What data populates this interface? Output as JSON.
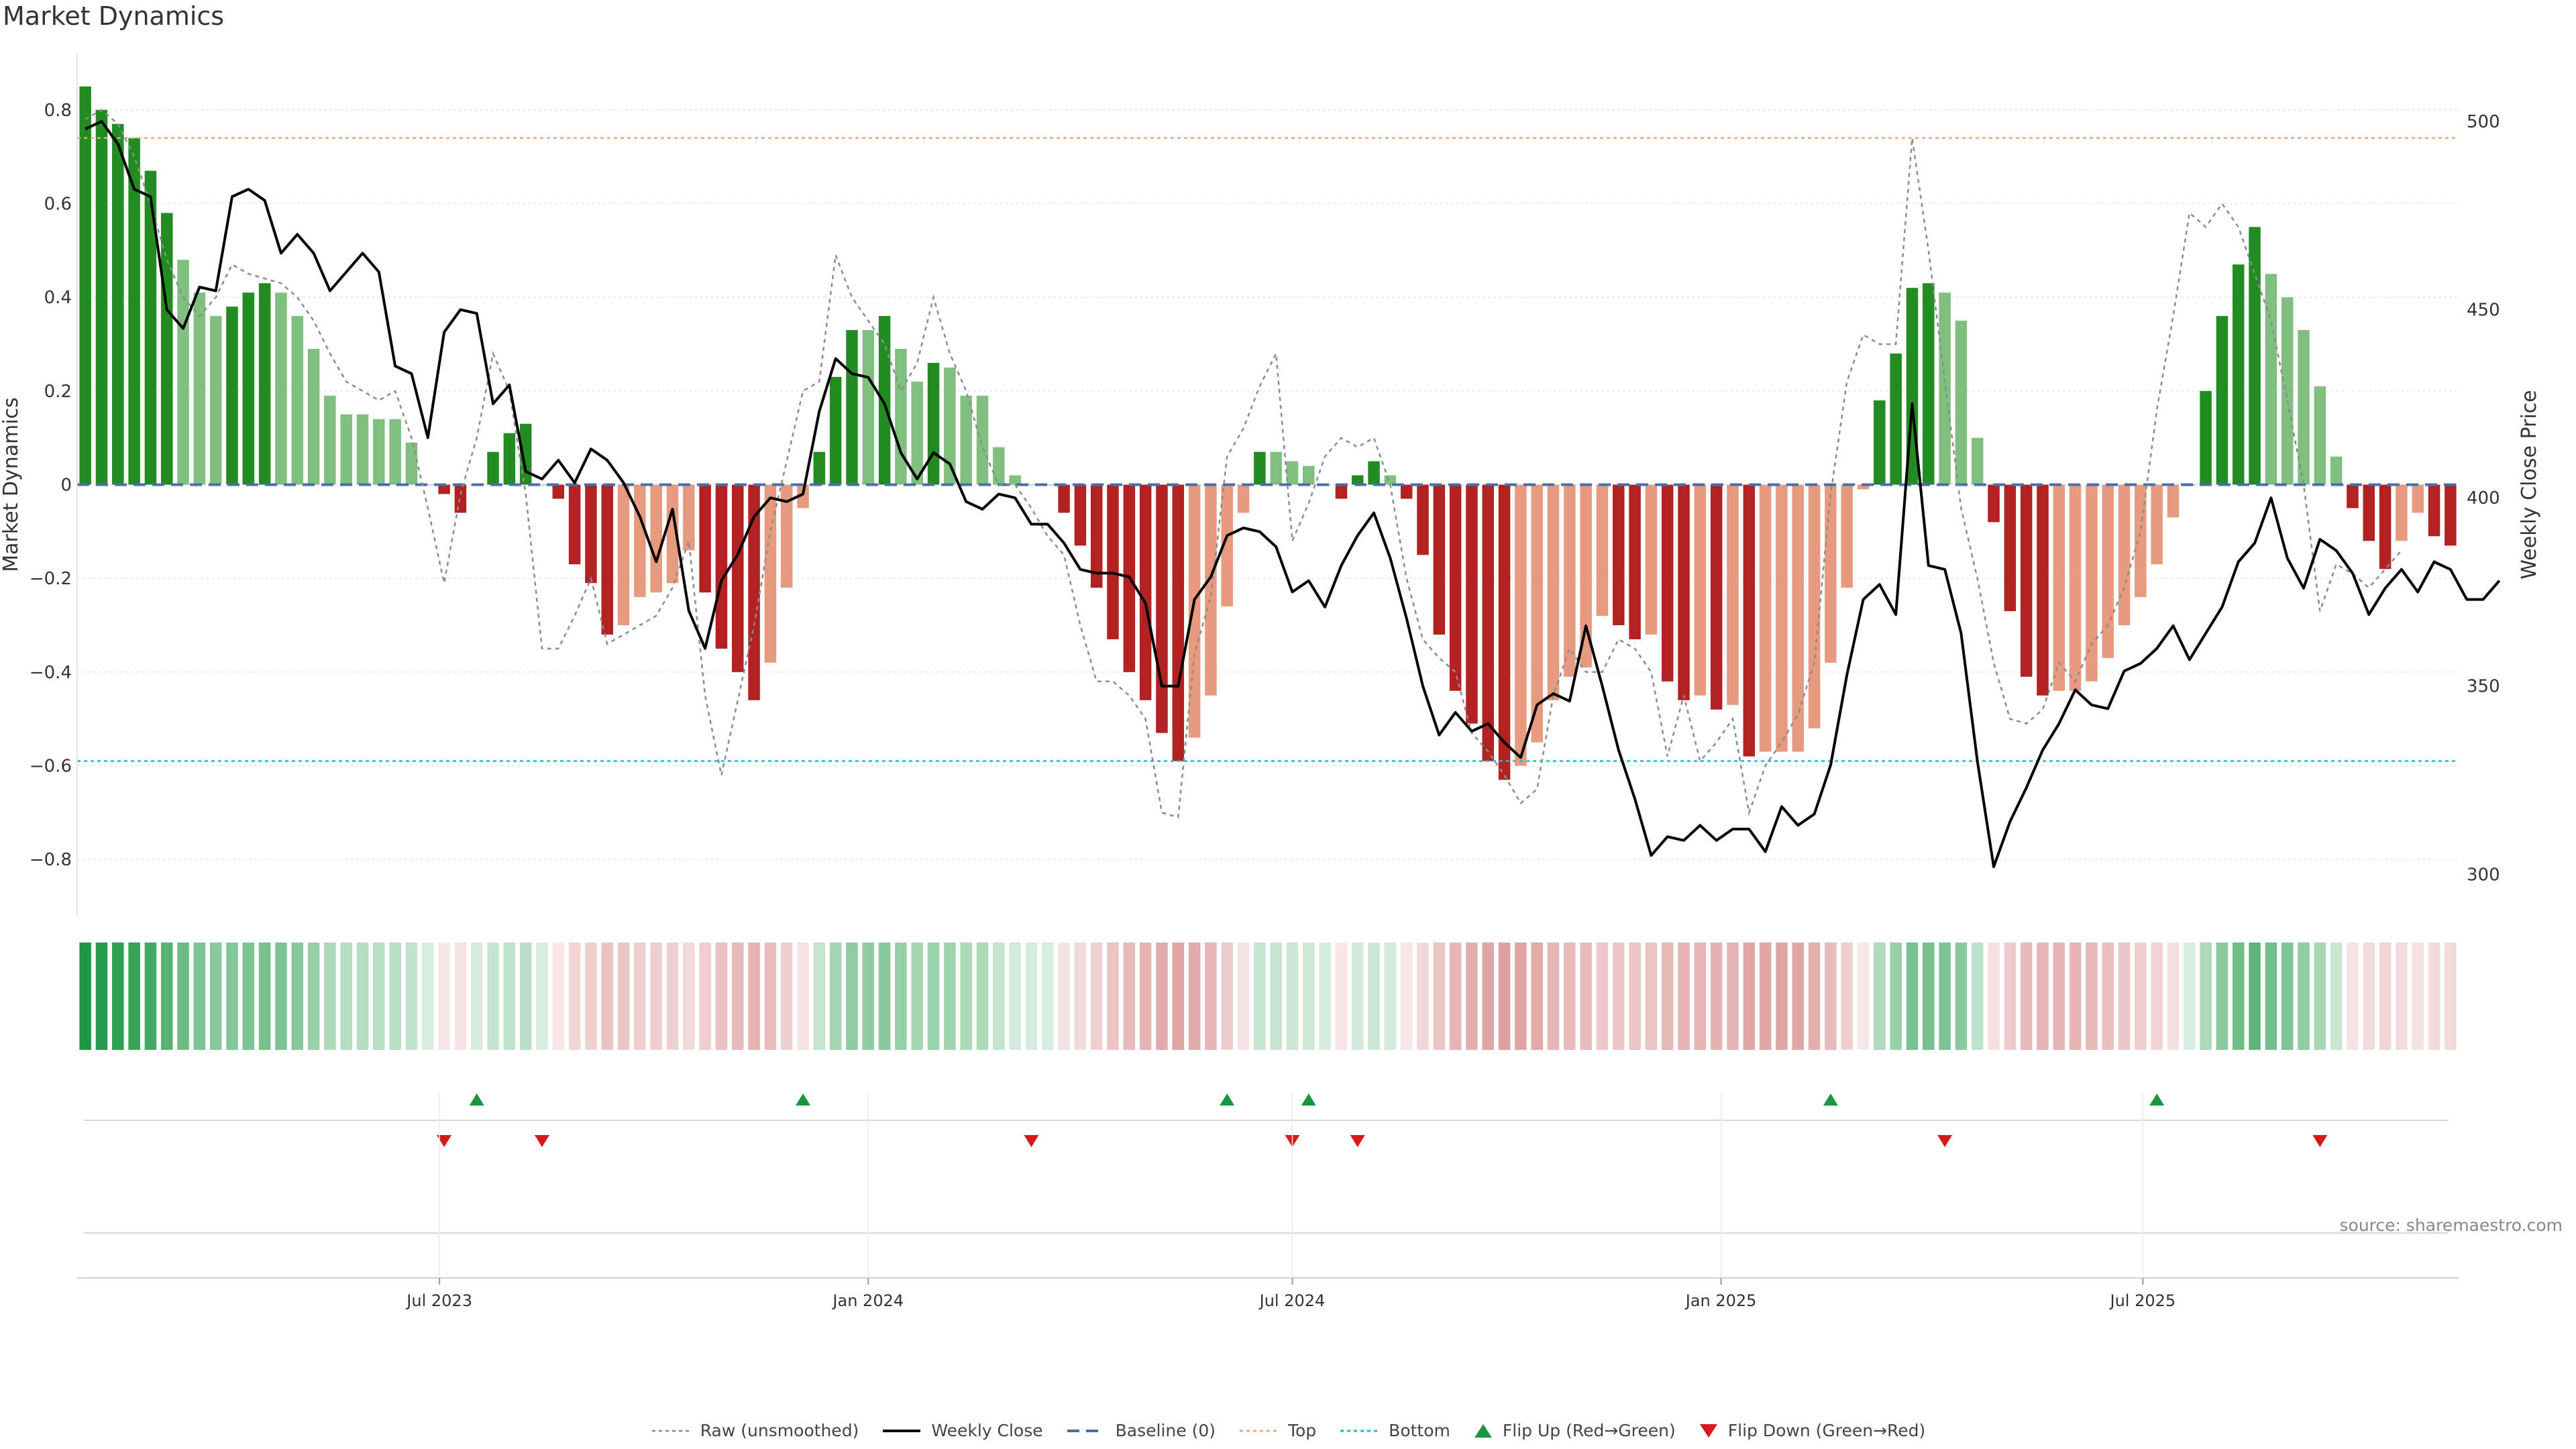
{
  "title": "Market Dynamics",
  "source": "source: sharemaestro.com",
  "legend": {
    "raw": "Raw (unsmoothed)",
    "close": "Weekly Close",
    "baseline": "Baseline (0)",
    "top": "Top",
    "bottom": "Bottom",
    "flip_up": "Flip Up (Red→Green)",
    "flip_down": "Flip Down (Green→Red)"
  },
  "colors": {
    "strong_green": "#228b22",
    "light_green": "#7fbf7f",
    "strong_red": "#b22222",
    "light_red": "#e89a7e",
    "top_line": "#f4a582",
    "bottom_line": "#17becf",
    "baseline": "#4a6fa5"
  },
  "chart_data": {
    "type": "bar",
    "title": "Market Dynamics",
    "ylabel": "Market Dynamics",
    "y2label": "Weekly Close Price",
    "ylim": [
      -0.92,
      0.92
    ],
    "y2lim": [
      289,
      518
    ],
    "yticks": [
      "0.8",
      "0.6",
      "0.4",
      "0.2",
      "0",
      "−0.2",
      "−0.4",
      "−0.6",
      "−0.8"
    ],
    "y2ticks": [
      "500",
      "450",
      "400",
      "350",
      "300"
    ],
    "xticks": [
      "Jul 2023",
      "Jan 2024",
      "Jul 2024",
      "Jan 2025",
      "Jul 2025"
    ],
    "x_start": "2023-01-30",
    "x_step_days": 7,
    "top_threshold": 0.74,
    "bottom_threshold": -0.59,
    "bars": [
      0.85,
      0.8,
      0.77,
      0.74,
      0.67,
      0.58,
      0.48,
      0.41,
      0.36,
      0.38,
      0.41,
      0.43,
      0.41,
      0.36,
      0.29,
      0.19,
      0.15,
      0.15,
      0.14,
      0.14,
      0.09,
      0.0,
      -0.02,
      -0.06,
      0.0,
      0.07,
      0.11,
      0.13,
      0.0,
      -0.03,
      -0.17,
      -0.21,
      -0.32,
      -0.3,
      -0.24,
      -0.23,
      -0.21,
      -0.14,
      -0.23,
      -0.35,
      -0.4,
      -0.46,
      -0.38,
      -0.22,
      -0.05,
      0.07,
      0.23,
      0.33,
      0.33,
      0.36,
      0.29,
      0.22,
      0.26,
      0.25,
      0.19,
      0.19,
      0.08,
      0.02,
      0.0,
      0.0,
      -0.06,
      -0.13,
      -0.22,
      -0.33,
      -0.4,
      -0.46,
      -0.53,
      -0.59,
      -0.54,
      -0.45,
      -0.26,
      -0.06,
      0.07,
      0.07,
      0.05,
      0.04,
      0.0,
      -0.03,
      0.02,
      0.05,
      0.02,
      -0.03,
      -0.15,
      -0.32,
      -0.44,
      -0.51,
      -0.59,
      -0.63,
      -0.6,
      -0.55,
      -0.46,
      -0.41,
      -0.39,
      -0.28,
      -0.3,
      -0.33,
      -0.32,
      -0.42,
      -0.46,
      -0.45,
      -0.48,
      -0.47,
      -0.58,
      -0.57,
      -0.57,
      -0.57,
      -0.52,
      -0.38,
      -0.22,
      -0.01,
      0.18,
      0.28,
      0.42,
      0.43,
      0.41,
      0.35,
      0.1,
      -0.08,
      -0.27,
      -0.41,
      -0.45,
      -0.44,
      -0.44,
      -0.42,
      -0.37,
      -0.3,
      -0.24,
      -0.17,
      -0.07,
      0.0,
      0.2,
      0.36,
      0.47,
      0.55,
      0.45,
      0.4,
      0.33,
      0.21,
      0.06,
      -0.05,
      -0.12,
      -0.18,
      -0.12,
      -0.06,
      -0.11,
      -0.13
    ],
    "raw": [
      0.78,
      0.8,
      0.77,
      0.7,
      0.6,
      0.48,
      0.4,
      0.36,
      0.4,
      0.47,
      0.45,
      0.44,
      0.43,
      0.4,
      0.35,
      0.28,
      0.22,
      0.2,
      0.18,
      0.2,
      0.1,
      -0.05,
      -0.21,
      -0.02,
      0.1,
      0.28,
      0.2,
      -0.02,
      -0.35,
      -0.35,
      -0.28,
      -0.2,
      -0.34,
      -0.32,
      -0.3,
      -0.28,
      -0.22,
      -0.12,
      -0.45,
      -0.62,
      -0.46,
      -0.3,
      -0.1,
      0.05,
      0.2,
      0.22,
      0.49,
      0.4,
      0.35,
      0.3,
      0.2,
      0.26,
      0.4,
      0.28,
      0.2,
      0.08,
      0.0,
      0.0,
      -0.05,
      -0.11,
      -0.15,
      -0.3,
      -0.42,
      -0.42,
      -0.45,
      -0.5,
      -0.7,
      -0.71,
      -0.36,
      -0.24,
      0.06,
      0.12,
      0.21,
      0.28,
      -0.12,
      -0.04,
      0.06,
      0.1,
      0.08,
      0.1,
      0.0,
      -0.2,
      -0.33,
      -0.37,
      -0.4,
      -0.53,
      -0.57,
      -0.62,
      -0.68,
      -0.65,
      -0.45,
      -0.35,
      -0.4,
      -0.4,
      -0.33,
      -0.35,
      -0.4,
      -0.58,
      -0.45,
      -0.59,
      -0.55,
      -0.5,
      -0.7,
      -0.6,
      -0.55,
      -0.49,
      -0.38,
      -0.02,
      0.22,
      0.32,
      0.3,
      0.3,
      0.74,
      0.5,
      0.22,
      -0.05,
      -0.2,
      -0.38,
      -0.5,
      -0.51,
      -0.48,
      -0.38,
      -0.42,
      -0.34,
      -0.3,
      -0.22,
      -0.1,
      0.16,
      0.36,
      0.58,
      0.55,
      0.6,
      0.55,
      0.45,
      0.35,
      0.18,
      0.0,
      -0.27,
      -0.17,
      -0.19,
      -0.22,
      -0.18,
      -0.14
    ],
    "close": [
      498,
      500,
      494,
      482,
      480,
      450,
      445,
      456,
      455,
      480,
      482,
      479,
      465,
      470,
      465,
      455,
      460,
      465,
      460,
      435,
      433,
      416,
      444,
      450,
      449,
      425,
      430,
      407,
      405,
      410,
      404,
      413,
      410,
      404,
      395,
      383,
      397,
      370,
      360,
      378,
      385,
      395,
      400,
      399,
      401,
      423,
      437,
      433,
      432,
      425,
      412,
      405,
      412,
      409,
      399,
      397,
      401,
      400,
      393,
      393,
      388,
      381,
      380,
      380,
      379,
      372,
      350,
      350,
      373,
      379,
      390,
      392,
      391,
      387,
      375,
      378,
      371,
      382,
      390,
      396,
      384,
      368,
      350,
      337,
      343,
      338,
      340,
      335,
      331,
      345,
      348,
      346,
      366,
      350,
      333,
      320,
      305,
      310,
      309,
      313,
      309,
      312,
      312,
      306,
      318,
      313,
      316,
      329,
      353,
      373,
      377,
      369,
      425,
      382,
      381,
      364,
      330,
      302,
      314,
      323,
      333,
      340,
      349,
      345,
      344,
      354,
      356,
      360,
      366,
      357,
      364,
      371,
      383,
      388,
      400,
      384,
      376,
      389,
      386,
      380,
      369,
      376,
      381,
      375,
      383,
      381,
      373,
      373,
      378
    ]
  },
  "regime_strip": {
    "values": [
      0.85,
      0.8,
      0.77,
      0.74,
      0.67,
      0.58,
      0.48,
      0.41,
      0.36,
      0.38,
      0.41,
      0.43,
      0.41,
      0.36,
      0.29,
      0.19,
      0.15,
      0.15,
      0.14,
      0.14,
      0.09,
      0.0,
      -0.02,
      -0.06,
      0.0,
      0.07,
      0.11,
      0.13,
      0.0,
      -0.03,
      -0.17,
      -0.21,
      -0.32,
      -0.3,
      -0.24,
      -0.23,
      -0.21,
      -0.14,
      -0.23,
      -0.35,
      -0.4,
      -0.46,
      -0.38,
      -0.22,
      -0.05,
      0.07,
      0.23,
      0.33,
      0.33,
      0.36,
      0.29,
      0.22,
      0.26,
      0.25,
      0.19,
      0.19,
      0.08,
      0.02,
      0.0,
      0.0,
      -0.06,
      -0.13,
      -0.22,
      -0.33,
      -0.4,
      -0.46,
      -0.53,
      -0.59,
      -0.54,
      -0.45,
      -0.26,
      -0.06,
      0.07,
      0.07,
      0.05,
      0.04,
      0.0,
      -0.03,
      0.02,
      0.05,
      0.02,
      -0.03,
      -0.15,
      -0.32,
      -0.44,
      -0.51,
      -0.59,
      -0.63,
      -0.6,
      -0.55,
      -0.46,
      -0.41,
      -0.39,
      -0.28,
      -0.3,
      -0.33,
      -0.32,
      -0.42,
      -0.46,
      -0.45,
      -0.48,
      -0.47,
      -0.58,
      -0.57,
      -0.57,
      -0.57,
      -0.52,
      -0.38,
      -0.22,
      -0.01,
      0.18,
      0.28,
      0.42,
      0.43,
      0.41,
      0.35,
      0.1,
      -0.08,
      -0.27,
      -0.41,
      -0.45,
      -0.44,
      -0.44,
      -0.42,
      -0.37,
      -0.3,
      -0.24,
      -0.17,
      -0.07,
      0.0,
      0.2,
      0.36,
      0.47,
      0.55,
      0.45,
      0.4,
      0.33,
      0.21,
      0.06,
      -0.05,
      -0.12,
      -0.18,
      -0.12,
      -0.06,
      -0.11,
      -0.13
    ]
  },
  "flips": {
    "up_weeks": [
      24,
      44,
      70,
      75,
      107,
      127
    ],
    "down_weeks": [
      22,
      28,
      58,
      74,
      78,
      114,
      137
    ]
  }
}
